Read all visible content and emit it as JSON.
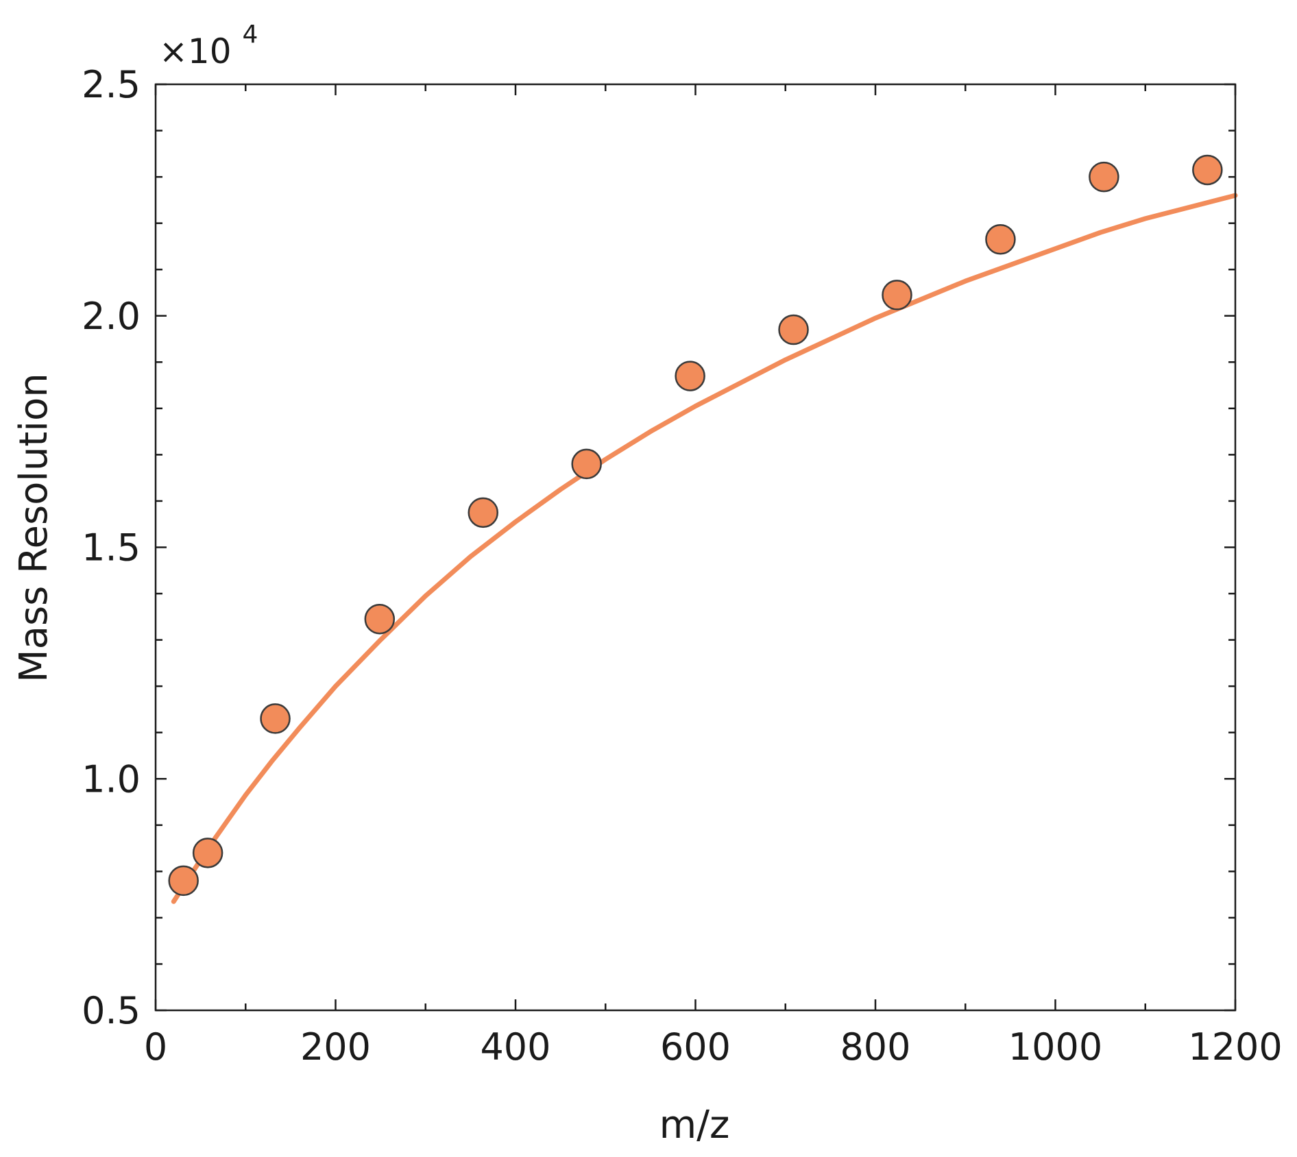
{
  "chart_data": {
    "type": "scatter",
    "xlabel": "m/z",
    "ylabel": "Mass Resolution",
    "y_multiplier_base": "×10",
    "y_multiplier_exponent": "4",
    "xlim": [
      0,
      1200
    ],
    "ylim": [
      0.5,
      2.5
    ],
    "x_ticks": [
      "0",
      "200",
      "400",
      "600",
      "800",
      "1000",
      "1200"
    ],
    "y_ticks": [
      "0.5",
      "1.0",
      "1.5",
      "2.0",
      "2.5"
    ],
    "grid": false,
    "marker_color": "#F28C5A",
    "marker_edge_color": "#3a3a3a",
    "line_color": "#F28C5A",
    "series": [
      {
        "type": "scatter",
        "x": [
          31,
          58,
          133,
          249,
          364,
          479,
          594,
          709,
          824,
          939,
          1054,
          1169
        ],
        "y": [
          0.78,
          0.84,
          1.13,
          1.345,
          1.575,
          1.68,
          1.87,
          1.97,
          2.045,
          2.165,
          2.3,
          2.315
        ]
      },
      {
        "type": "line",
        "x": [
          20,
          40,
          60,
          80,
          100,
          130,
          160,
          200,
          250,
          300,
          350,
          400,
          450,
          500,
          550,
          600,
          650,
          700,
          750,
          800,
          850,
          900,
          950,
          1000,
          1050,
          1100,
          1150,
          1200
        ],
        "y": [
          0.735,
          0.795,
          0.855,
          0.91,
          0.965,
          1.04,
          1.11,
          1.2,
          1.3,
          1.395,
          1.48,
          1.555,
          1.625,
          1.69,
          1.75,
          1.805,
          1.855,
          1.905,
          1.95,
          1.995,
          2.035,
          2.075,
          2.11,
          2.145,
          2.18,
          2.21,
          2.235,
          2.26
        ]
      }
    ]
  }
}
